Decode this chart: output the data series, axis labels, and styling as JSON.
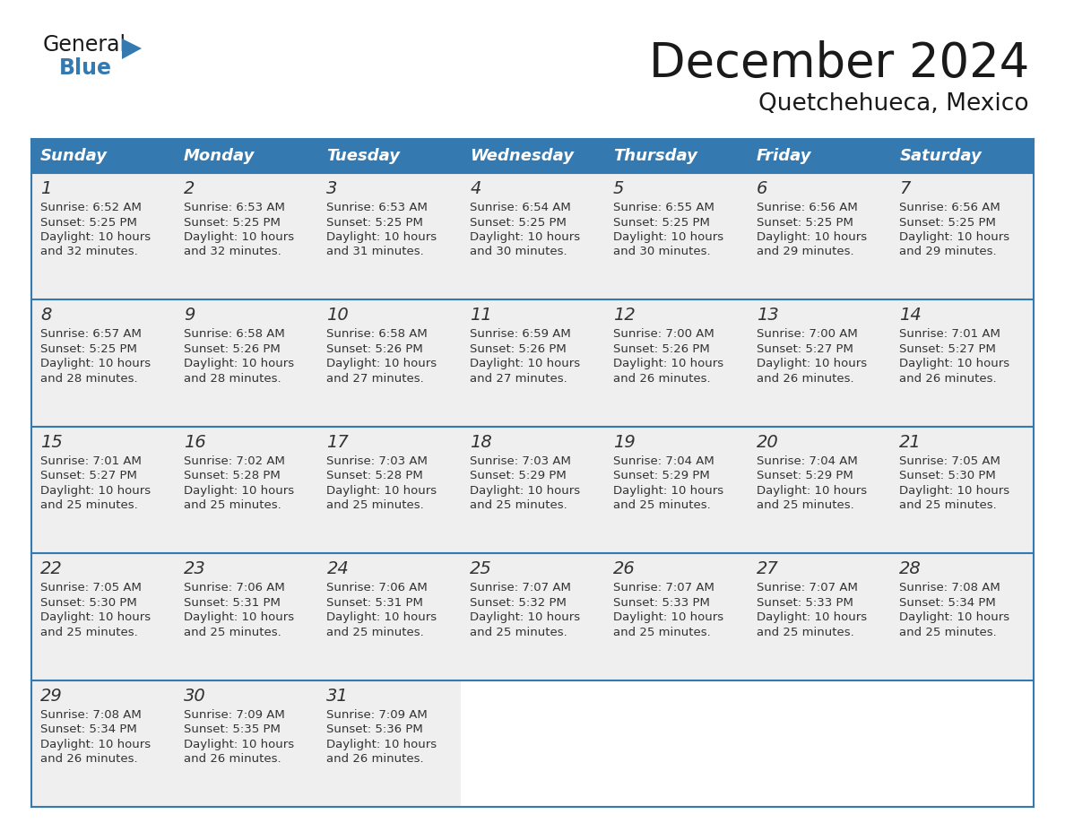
{
  "title": "December 2024",
  "subtitle": "Quetchehueca, Mexico",
  "header_bg_color": "#3579B1",
  "header_text_color": "#FFFFFF",
  "cell_bg_color": "#EFEFEF",
  "border_color": "#3579B1",
  "text_color": "#333333",
  "days_of_week": [
    "Sunday",
    "Monday",
    "Tuesday",
    "Wednesday",
    "Thursday",
    "Friday",
    "Saturday"
  ],
  "weeks": [
    [
      {
        "day": 1,
        "sunrise": "6:52 AM",
        "sunset": "5:25 PM",
        "daylight": "10 hours",
        "daylight2": "and 32 minutes."
      },
      {
        "day": 2,
        "sunrise": "6:53 AM",
        "sunset": "5:25 PM",
        "daylight": "10 hours",
        "daylight2": "and 32 minutes."
      },
      {
        "day": 3,
        "sunrise": "6:53 AM",
        "sunset": "5:25 PM",
        "daylight": "10 hours",
        "daylight2": "and 31 minutes."
      },
      {
        "day": 4,
        "sunrise": "6:54 AM",
        "sunset": "5:25 PM",
        "daylight": "10 hours",
        "daylight2": "and 30 minutes."
      },
      {
        "day": 5,
        "sunrise": "6:55 AM",
        "sunset": "5:25 PM",
        "daylight": "10 hours",
        "daylight2": "and 30 minutes."
      },
      {
        "day": 6,
        "sunrise": "6:56 AM",
        "sunset": "5:25 PM",
        "daylight": "10 hours",
        "daylight2": "and 29 minutes."
      },
      {
        "day": 7,
        "sunrise": "6:56 AM",
        "sunset": "5:25 PM",
        "daylight": "10 hours",
        "daylight2": "and 29 minutes."
      }
    ],
    [
      {
        "day": 8,
        "sunrise": "6:57 AM",
        "sunset": "5:25 PM",
        "daylight": "10 hours",
        "daylight2": "and 28 minutes."
      },
      {
        "day": 9,
        "sunrise": "6:58 AM",
        "sunset": "5:26 PM",
        "daylight": "10 hours",
        "daylight2": "and 28 minutes."
      },
      {
        "day": 10,
        "sunrise": "6:58 AM",
        "sunset": "5:26 PM",
        "daylight": "10 hours",
        "daylight2": "and 27 minutes."
      },
      {
        "day": 11,
        "sunrise": "6:59 AM",
        "sunset": "5:26 PM",
        "daylight": "10 hours",
        "daylight2": "and 27 minutes."
      },
      {
        "day": 12,
        "sunrise": "7:00 AM",
        "sunset": "5:26 PM",
        "daylight": "10 hours",
        "daylight2": "and 26 minutes."
      },
      {
        "day": 13,
        "sunrise": "7:00 AM",
        "sunset": "5:27 PM",
        "daylight": "10 hours",
        "daylight2": "and 26 minutes."
      },
      {
        "day": 14,
        "sunrise": "7:01 AM",
        "sunset": "5:27 PM",
        "daylight": "10 hours",
        "daylight2": "and 26 minutes."
      }
    ],
    [
      {
        "day": 15,
        "sunrise": "7:01 AM",
        "sunset": "5:27 PM",
        "daylight": "10 hours",
        "daylight2": "and 25 minutes."
      },
      {
        "day": 16,
        "sunrise": "7:02 AM",
        "sunset": "5:28 PM",
        "daylight": "10 hours",
        "daylight2": "and 25 minutes."
      },
      {
        "day": 17,
        "sunrise": "7:03 AM",
        "sunset": "5:28 PM",
        "daylight": "10 hours",
        "daylight2": "and 25 minutes."
      },
      {
        "day": 18,
        "sunrise": "7:03 AM",
        "sunset": "5:29 PM",
        "daylight": "10 hours",
        "daylight2": "and 25 minutes."
      },
      {
        "day": 19,
        "sunrise": "7:04 AM",
        "sunset": "5:29 PM",
        "daylight": "10 hours",
        "daylight2": "and 25 minutes."
      },
      {
        "day": 20,
        "sunrise": "7:04 AM",
        "sunset": "5:29 PM",
        "daylight": "10 hours",
        "daylight2": "and 25 minutes."
      },
      {
        "day": 21,
        "sunrise": "7:05 AM",
        "sunset": "5:30 PM",
        "daylight": "10 hours",
        "daylight2": "and 25 minutes."
      }
    ],
    [
      {
        "day": 22,
        "sunrise": "7:05 AM",
        "sunset": "5:30 PM",
        "daylight": "10 hours",
        "daylight2": "and 25 minutes."
      },
      {
        "day": 23,
        "sunrise": "7:06 AM",
        "sunset": "5:31 PM",
        "daylight": "10 hours",
        "daylight2": "and 25 minutes."
      },
      {
        "day": 24,
        "sunrise": "7:06 AM",
        "sunset": "5:31 PM",
        "daylight": "10 hours",
        "daylight2": "and 25 minutes."
      },
      {
        "day": 25,
        "sunrise": "7:07 AM",
        "sunset": "5:32 PM",
        "daylight": "10 hours",
        "daylight2": "and 25 minutes."
      },
      {
        "day": 26,
        "sunrise": "7:07 AM",
        "sunset": "5:33 PM",
        "daylight": "10 hours",
        "daylight2": "and 25 minutes."
      },
      {
        "day": 27,
        "sunrise": "7:07 AM",
        "sunset": "5:33 PM",
        "daylight": "10 hours",
        "daylight2": "and 25 minutes."
      },
      {
        "day": 28,
        "sunrise": "7:08 AM",
        "sunset": "5:34 PM",
        "daylight": "10 hours",
        "daylight2": "and 25 minutes."
      }
    ],
    [
      {
        "day": 29,
        "sunrise": "7:08 AM",
        "sunset": "5:34 PM",
        "daylight": "10 hours",
        "daylight2": "and 26 minutes."
      },
      {
        "day": 30,
        "sunrise": "7:09 AM",
        "sunset": "5:35 PM",
        "daylight": "10 hours",
        "daylight2": "and 26 minutes."
      },
      {
        "day": 31,
        "sunrise": "7:09 AM",
        "sunset": "5:36 PM",
        "daylight": "10 hours",
        "daylight2": "and 26 minutes."
      },
      null,
      null,
      null,
      null
    ]
  ],
  "logo_general_color": "#1a1a1a",
  "logo_blue_color": "#3579B1",
  "title_fontsize": 38,
  "subtitle_fontsize": 19,
  "day_header_fontsize": 13,
  "day_num_fontsize": 14,
  "cell_text_fontsize": 9.5
}
